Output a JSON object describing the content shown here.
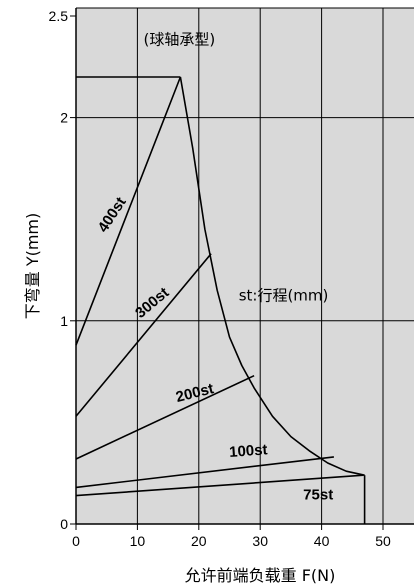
{
  "chart_data": {
    "type": "line",
    "xlabel": "允许前端负载重 F(N)",
    "ylabel": "下弯量 Y(mm)",
    "xlim": [
      0,
      55
    ],
    "ylim": [
      0,
      2.5
    ],
    "x_ticks": [
      {
        "value": 0,
        "label": "0"
      },
      {
        "value": 10,
        "label": "10"
      },
      {
        "value": 20,
        "label": "20"
      },
      {
        "value": 30,
        "label": "30"
      },
      {
        "value": 40,
        "label": "40"
      },
      {
        "value": 50,
        "label": "50"
      }
    ],
    "y_ticks": [
      {
        "value": 0,
        "label": "0"
      },
      {
        "value": 1,
        "label": "1"
      },
      {
        "value": 2,
        "label": "2"
      },
      {
        "value": 2.5,
        "label": "2.5"
      }
    ],
    "grid_x": [
      10,
      20,
      30,
      40,
      50
    ],
    "grid_y": [
      1,
      2
    ],
    "background_color": "#d9d9d9",
    "line_color": "#000000",
    "annotations": [
      {
        "text": "(球轴承型)",
        "x": 11,
        "y": 2.36
      },
      {
        "text": "st:行程(mm)",
        "x": 26.5,
        "y": 1.1
      }
    ],
    "series": [
      {
        "name": "75st",
        "label_x": 37,
        "label_y": 0.12,
        "label_angle": 0,
        "points": [
          [
            0,
            0.14
          ],
          [
            46.8,
            0.24
          ]
        ]
      },
      {
        "name": "100st",
        "label_x": 25,
        "label_y": 0.33,
        "label_angle": -4,
        "points": [
          [
            0,
            0.18
          ],
          [
            42,
            0.33
          ]
        ]
      },
      {
        "name": "200st",
        "label_x": 16.5,
        "label_y": 0.6,
        "label_angle": -14,
        "points": [
          [
            0,
            0.32
          ],
          [
            29,
            0.73
          ]
        ]
      },
      {
        "name": "300st",
        "label_x": 10.5,
        "label_y": 1.01,
        "label_angle": -40,
        "points": [
          [
            0,
            0.53
          ],
          [
            22,
            1.33
          ]
        ]
      },
      {
        "name": "400st",
        "label_x": 4.8,
        "label_y": 1.43,
        "label_angle": -57,
        "points": [
          [
            0,
            0.88
          ],
          [
            17,
            2.2
          ]
        ]
      }
    ],
    "top_cap": [
      [
        0,
        2.2
      ],
      [
        17,
        2.2
      ]
    ],
    "envelope": [
      [
        17,
        2.2
      ],
      [
        19,
        1.85
      ],
      [
        21,
        1.45
      ],
      [
        23,
        1.15
      ],
      [
        25,
        0.92
      ],
      [
        27,
        0.78
      ],
      [
        29,
        0.67
      ],
      [
        32,
        0.53
      ],
      [
        35,
        0.43
      ],
      [
        38,
        0.36
      ],
      [
        41,
        0.3
      ],
      [
        44,
        0.26
      ],
      [
        47,
        0.24
      ]
    ],
    "drop_line": [
      [
        47,
        0.24
      ],
      [
        47,
        0
      ]
    ]
  }
}
